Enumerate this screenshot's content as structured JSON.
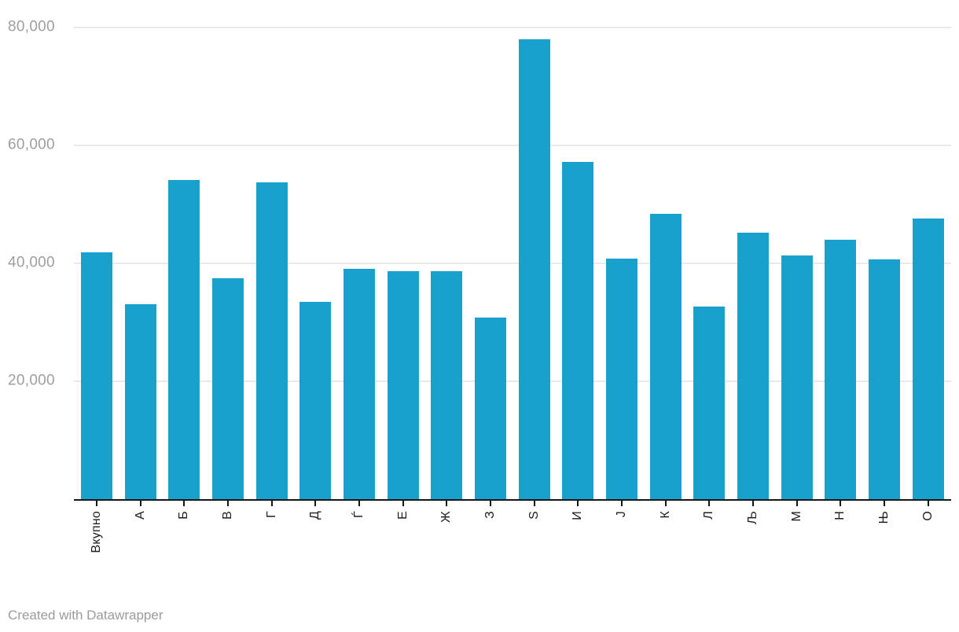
{
  "chart_data": {
    "type": "bar",
    "categories": [
      "Вкупно",
      "А",
      "Б",
      "В",
      "Г",
      "Д",
      "Ѓ",
      "Е",
      "Ж",
      "З",
      "Ѕ",
      "И",
      "Ј",
      "К",
      "Л",
      "Љ",
      "М",
      "Н",
      "Њ",
      "О"
    ],
    "values": [
      41900,
      33100,
      54100,
      37500,
      53700,
      33400,
      39000,
      38600,
      38700,
      30800,
      78000,
      57200,
      40800,
      48400,
      32600,
      45200,
      41300,
      44000,
      40700,
      47600
    ],
    "yticks": [
      20000,
      40000,
      60000,
      80000
    ],
    "ytick_labels": [
      "20,000",
      "40,000",
      "60,000",
      "80,000"
    ],
    "ylim": [
      0,
      80000
    ],
    "grid": "horizontal",
    "legend": "none",
    "bar_color": "#18a1cd"
  },
  "colors": {
    "bar": "#18a1cd",
    "gridline": "#e9e9e9",
    "axis": "#161616",
    "y_tick_label": "#9e9e9e",
    "x_tick_label": "#1d1d1d",
    "footer_text": "#9b9b9b"
  },
  "footer": {
    "attribution": "Created with Datawrapper"
  }
}
